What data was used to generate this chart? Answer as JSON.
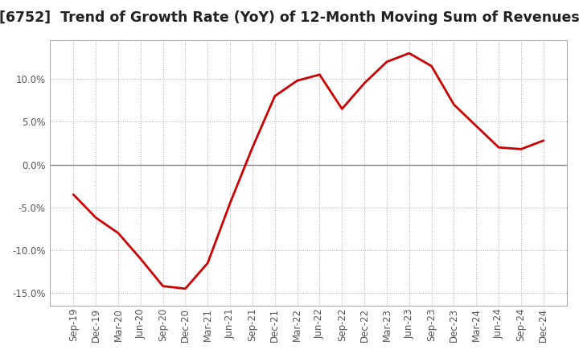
{
  "title": "[6752]  Trend of Growth Rate (YoY) of 12-Month Moving Sum of Revenues",
  "title_fontsize": 12.5,
  "line_color": "#cc0000",
  "line_width": 2.0,
  "background_color": "#ffffff",
  "grid_color": "#aaaaaa",
  "zero_line_color": "#888888",
  "border_color": "#aaaaaa",
  "x_labels": [
    "Sep-19",
    "Dec-19",
    "Mar-20",
    "Jun-20",
    "Sep-20",
    "Dec-20",
    "Mar-21",
    "Jun-21",
    "Sep-21",
    "Dec-21",
    "Mar-22",
    "Jun-22",
    "Sep-22",
    "Dec-22",
    "Mar-23",
    "Jun-23",
    "Sep-23",
    "Dec-23",
    "Mar-24",
    "Jun-24",
    "Sep-24",
    "Dec-24"
  ],
  "y_values": [
    -3.5,
    -6.2,
    -8.0,
    -11.0,
    -14.2,
    -14.5,
    -11.5,
    -4.5,
    2.0,
    8.0,
    9.8,
    10.5,
    6.5,
    9.5,
    12.0,
    13.0,
    11.5,
    7.0,
    4.5,
    2.0,
    1.8,
    2.8
  ],
  "ylim": [
    -16.5,
    14.5
  ],
  "yticks": [
    -15.0,
    -10.0,
    -5.0,
    0.0,
    5.0,
    10.0
  ],
  "tick_color": "#555555",
  "tick_fontsize": 8.5
}
